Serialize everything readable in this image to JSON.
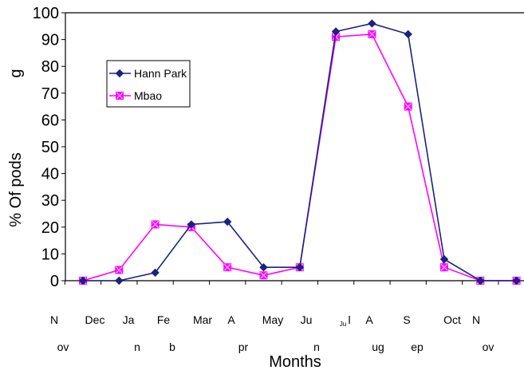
{
  "chart_data": {
    "type": "line",
    "title": "",
    "xlabel": "Months",
    "ylabel": "% Of pods",
    "ylabel_fragment": "g",
    "ylim": [
      0,
      100
    ],
    "yticks": [
      "0",
      "10",
      "20",
      "30",
      "40",
      "50",
      "60",
      "70",
      "80",
      "90",
      "100"
    ],
    "grid": false,
    "legend_position": "upper-left",
    "x_label_rows": [
      [
        {
          "text": "N"
        },
        {
          "text": "Dec"
        },
        {
          "text": "Ja"
        },
        {
          "text": "Fe"
        },
        {
          "text": "Mar"
        },
        {
          "text": "A"
        },
        {
          "text": "May"
        },
        {
          "text": "Ju"
        },
        {
          "text": "l"
        },
        {
          "text": "A"
        },
        {
          "text": "S"
        },
        {
          "text": "Oct"
        },
        {
          "text": "N"
        }
      ],
      [
        {
          "text": "Ju"
        }
      ],
      [
        {
          "text": "ov"
        },
        {
          "text": "n"
        },
        {
          "text": "b"
        },
        {
          "text": "pr"
        },
        {
          "text": "n"
        },
        {
          "text": "ug"
        },
        {
          "text": "ep"
        },
        {
          "text": "ov"
        }
      ]
    ],
    "series": [
      {
        "name": "Hann Park",
        "color": "#1a237e",
        "marker": "diamond",
        "values": [
          0,
          0,
          3,
          21,
          22,
          5,
          5,
          93,
          96,
          92,
          8,
          0,
          0
        ]
      },
      {
        "name": "Mbao",
        "color": "#ff00ff",
        "marker": "x-square",
        "values": [
          0,
          4,
          21,
          20,
          5,
          2,
          5,
          91,
          92,
          65,
          5,
          0,
          0
        ]
      }
    ]
  }
}
